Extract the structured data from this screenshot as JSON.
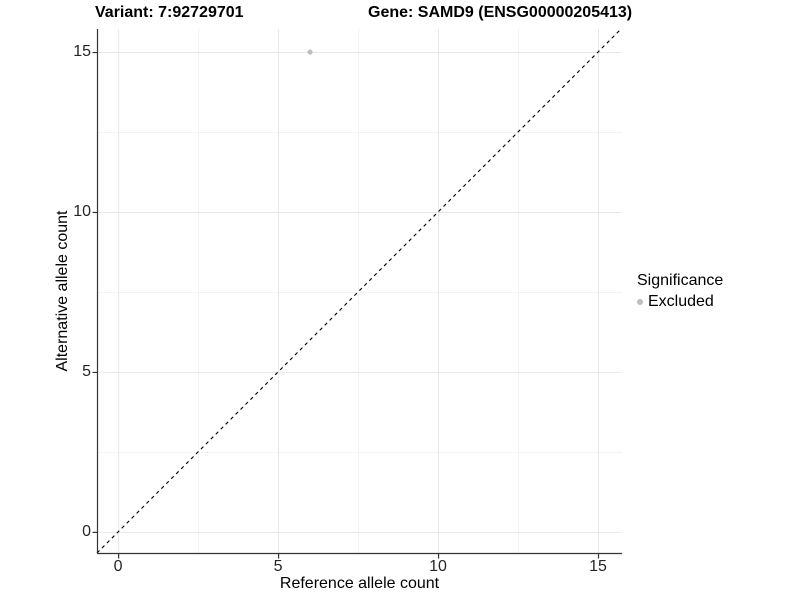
{
  "chart_data": {
    "type": "scatter",
    "titles": [
      "Variant: 7:92729701",
      "Gene: SAMD9 (ENSG00000205413)"
    ],
    "xlabel": "Reference allele count",
    "ylabel": "Alternative allele count",
    "xlim": [
      -0.66,
      15.75
    ],
    "ylim": [
      -0.66,
      15.72
    ],
    "xticks": [
      0,
      5,
      10,
      15
    ],
    "yticks": [
      0,
      5,
      10,
      15
    ],
    "xminor": [
      2.5,
      7.5,
      12.5
    ],
    "yminor": [
      2.5,
      7.5,
      12.5
    ],
    "grid": "major+minor",
    "legend": {
      "title": "Significance",
      "position": "right",
      "items": [
        {
          "label": "Excluded",
          "color": "#bebebe"
        }
      ]
    },
    "series": [
      {
        "name": "Excluded",
        "color": "#bebebe",
        "points": [
          {
            "x": 6,
            "y": 15
          }
        ]
      }
    ],
    "reference_line": {
      "kind": "identity y=x",
      "style": "dashed",
      "color": "#000000"
    },
    "colors": {
      "background": "#ffffff",
      "grid_major": "#e7e7e7",
      "grid_minor": "#f2f2f2",
      "axis_line": "#333333",
      "tick_mark": "#333333",
      "tick_label": "#262626",
      "point": "#bebebe"
    }
  }
}
